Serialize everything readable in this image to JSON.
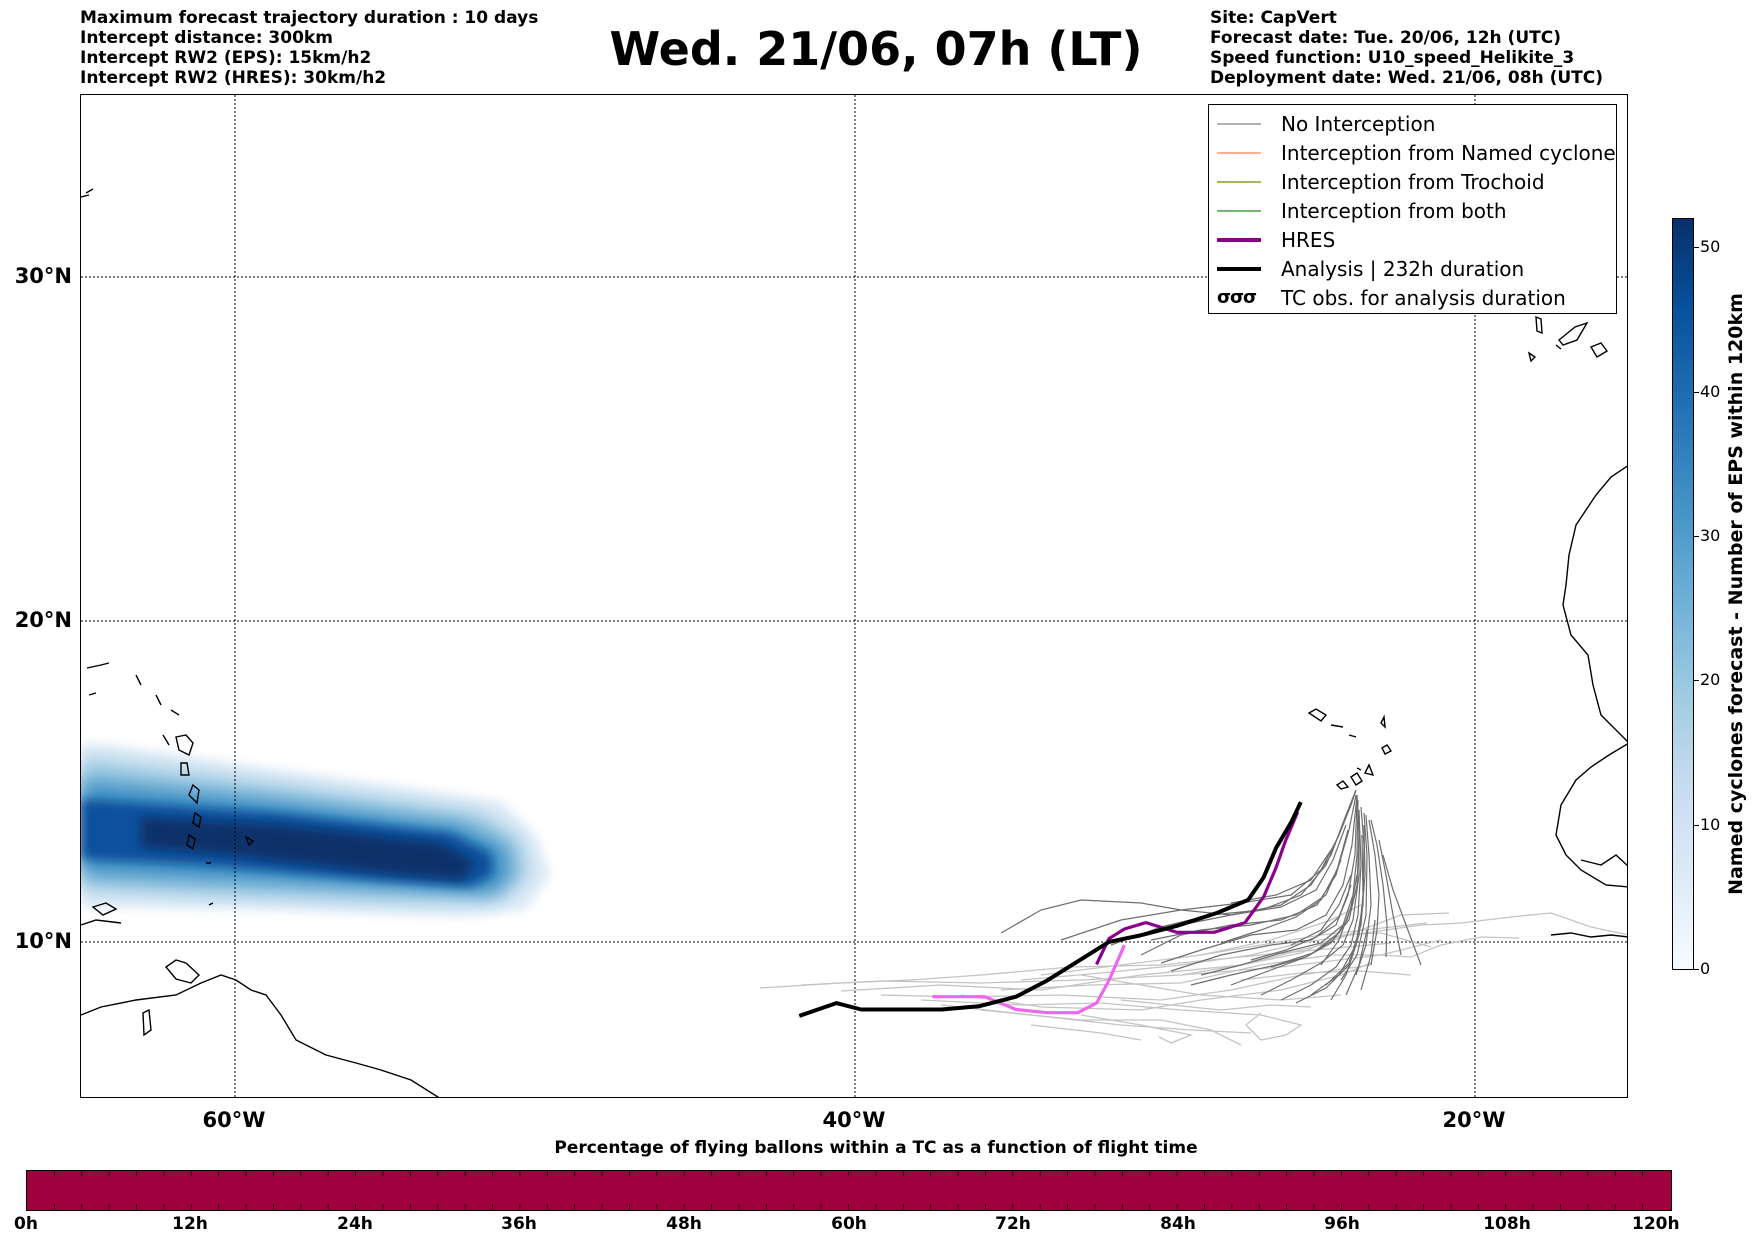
{
  "title": "Wed. 21/06, 07h (LT)",
  "info_left": [
    "Maximum forecast trajectory duration : 10 days",
    "Intercept distance: 300km",
    "Intercept RW2 (EPS):  15km/h2",
    "Intercept RW2 (HRES): 30km/h2"
  ],
  "info_right": [
    "Site: CapVert",
    "Forecast date: Tue. 20/06, 12h (UTC)",
    "Speed function: U10_speed_Helikite_3",
    "Deployment date: Wed. 21/06, 08h (UTC)"
  ],
  "map": {
    "lat_labels": [
      "30°N",
      "20°N",
      "10°N"
    ],
    "lon_labels": [
      "60°W",
      "40°W",
      "20°W"
    ],
    "gridlines": true,
    "lon_range": [
      -65,
      -15
    ],
    "lat_range": [
      5.4,
      34.7
    ]
  },
  "legend": {
    "position": "top-right",
    "items": [
      {
        "label": "No Interception",
        "color": "#808080",
        "width": 1
      },
      {
        "label": "Interception from Named cyclone",
        "color": "#ff7f50",
        "width": 1
      },
      {
        "label": "Interception from Trochoid",
        "color": "#808000",
        "width": 1
      },
      {
        "label": "Interception from both",
        "color": "#228b22",
        "width": 1
      },
      {
        "label": "HRES",
        "color": "#8b008b",
        "width": 4
      },
      {
        "label": "Analysis | 232h duration",
        "color": "#000000",
        "width": 4
      }
    ],
    "tc_item": {
      "symbol": "σσσ",
      "label": "TC obs. for analysis duration"
    }
  },
  "colorbar": {
    "title": "Named cyclones forecast - Number of EPS within 120km",
    "ticks": [
      "0",
      "10",
      "20",
      "30",
      "40",
      "50"
    ],
    "min": 0,
    "max": 52
  },
  "timebar": {
    "title": "Percentage of flying ballons within a TC as a function of flight time",
    "ticks": [
      "0h",
      "12h",
      "24h",
      "36h",
      "48h",
      "60h",
      "72h",
      "84h",
      "96h",
      "108h",
      "120h"
    ],
    "color": "#a0003c"
  },
  "tracks": {
    "hres": [
      [
        -32.2,
        9.6
      ],
      [
        -31.8,
        10.4
      ],
      [
        -31.3,
        10.7
      ],
      [
        -30.6,
        10.9
      ],
      [
        -29.6,
        10.6
      ],
      [
        -28.4,
        10.6
      ],
      [
        -27.4,
        10.9
      ],
      [
        -26.8,
        11.7
      ],
      [
        -26.4,
        12.6
      ],
      [
        -26.1,
        13.4
      ],
      [
        -25.7,
        14.3
      ]
    ],
    "hres_light": [
      [
        -37.5,
        8.6
      ],
      [
        -36.8,
        8.6
      ],
      [
        -35.8,
        8.6
      ],
      [
        -34.8,
        8.2
      ],
      [
        -33.8,
        8.1
      ],
      [
        -32.8,
        8.1
      ],
      [
        -32.2,
        8.4
      ],
      [
        -31.8,
        9.1
      ],
      [
        -31.3,
        10.2
      ]
    ],
    "analysis": [
      [
        -41.8,
        8.0
      ],
      [
        -41.2,
        8.2
      ],
      [
        -40.6,
        8.4
      ],
      [
        -39.8,
        8.2
      ],
      [
        -38.5,
        8.2
      ],
      [
        -37.2,
        8.2
      ],
      [
        -36.0,
        8.3
      ],
      [
        -34.8,
        8.6
      ],
      [
        -33.8,
        9.1
      ],
      [
        -32.8,
        9.7
      ],
      [
        -31.8,
        10.3
      ],
      [
        -30.8,
        10.5
      ],
      [
        -29.6,
        10.8
      ],
      [
        -28.3,
        11.2
      ],
      [
        -27.3,
        11.6
      ],
      [
        -26.8,
        12.3
      ],
      [
        -26.4,
        13.2
      ],
      [
        -25.9,
        14.0
      ],
      [
        -25.6,
        14.6
      ]
    ]
  }
}
